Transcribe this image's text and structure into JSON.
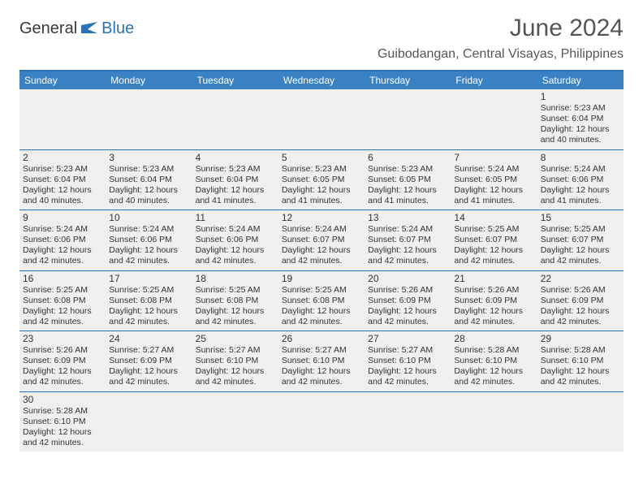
{
  "brand": {
    "part1": "General",
    "part2": "Blue"
  },
  "title": "June 2024",
  "location": "Guibodangan, Central Visayas, Philippines",
  "colors": {
    "header_bar": "#3b82c4",
    "accent": "#2a72b5",
    "cell_bg": "#efefef",
    "text": "#333333"
  },
  "weekdays": [
    "Sunday",
    "Monday",
    "Tuesday",
    "Wednesday",
    "Thursday",
    "Friday",
    "Saturday"
  ],
  "labels": {
    "sunrise_prefix": "Sunrise: ",
    "sunset_prefix": "Sunset: ",
    "daylight_prefix": "Daylight: "
  },
  "weeks": [
    [
      null,
      null,
      null,
      null,
      null,
      null,
      {
        "n": 1,
        "sunrise": "5:23 AM",
        "sunset": "6:04 PM",
        "daylight": "12 hours and 40 minutes."
      }
    ],
    [
      {
        "n": 2,
        "sunrise": "5:23 AM",
        "sunset": "6:04 PM",
        "daylight": "12 hours and 40 minutes."
      },
      {
        "n": 3,
        "sunrise": "5:23 AM",
        "sunset": "6:04 PM",
        "daylight": "12 hours and 40 minutes."
      },
      {
        "n": 4,
        "sunrise": "5:23 AM",
        "sunset": "6:04 PM",
        "daylight": "12 hours and 41 minutes."
      },
      {
        "n": 5,
        "sunrise": "5:23 AM",
        "sunset": "6:05 PM",
        "daylight": "12 hours and 41 minutes."
      },
      {
        "n": 6,
        "sunrise": "5:23 AM",
        "sunset": "6:05 PM",
        "daylight": "12 hours and 41 minutes."
      },
      {
        "n": 7,
        "sunrise": "5:24 AM",
        "sunset": "6:05 PM",
        "daylight": "12 hours and 41 minutes."
      },
      {
        "n": 8,
        "sunrise": "5:24 AM",
        "sunset": "6:06 PM",
        "daylight": "12 hours and 41 minutes."
      }
    ],
    [
      {
        "n": 9,
        "sunrise": "5:24 AM",
        "sunset": "6:06 PM",
        "daylight": "12 hours and 42 minutes."
      },
      {
        "n": 10,
        "sunrise": "5:24 AM",
        "sunset": "6:06 PM",
        "daylight": "12 hours and 42 minutes."
      },
      {
        "n": 11,
        "sunrise": "5:24 AM",
        "sunset": "6:06 PM",
        "daylight": "12 hours and 42 minutes."
      },
      {
        "n": 12,
        "sunrise": "5:24 AM",
        "sunset": "6:07 PM",
        "daylight": "12 hours and 42 minutes."
      },
      {
        "n": 13,
        "sunrise": "5:24 AM",
        "sunset": "6:07 PM",
        "daylight": "12 hours and 42 minutes."
      },
      {
        "n": 14,
        "sunrise": "5:25 AM",
        "sunset": "6:07 PM",
        "daylight": "12 hours and 42 minutes."
      },
      {
        "n": 15,
        "sunrise": "5:25 AM",
        "sunset": "6:07 PM",
        "daylight": "12 hours and 42 minutes."
      }
    ],
    [
      {
        "n": 16,
        "sunrise": "5:25 AM",
        "sunset": "6:08 PM",
        "daylight": "12 hours and 42 minutes."
      },
      {
        "n": 17,
        "sunrise": "5:25 AM",
        "sunset": "6:08 PM",
        "daylight": "12 hours and 42 minutes."
      },
      {
        "n": 18,
        "sunrise": "5:25 AM",
        "sunset": "6:08 PM",
        "daylight": "12 hours and 42 minutes."
      },
      {
        "n": 19,
        "sunrise": "5:25 AM",
        "sunset": "6:08 PM",
        "daylight": "12 hours and 42 minutes."
      },
      {
        "n": 20,
        "sunrise": "5:26 AM",
        "sunset": "6:09 PM",
        "daylight": "12 hours and 42 minutes."
      },
      {
        "n": 21,
        "sunrise": "5:26 AM",
        "sunset": "6:09 PM",
        "daylight": "12 hours and 42 minutes."
      },
      {
        "n": 22,
        "sunrise": "5:26 AM",
        "sunset": "6:09 PM",
        "daylight": "12 hours and 42 minutes."
      }
    ],
    [
      {
        "n": 23,
        "sunrise": "5:26 AM",
        "sunset": "6:09 PM",
        "daylight": "12 hours and 42 minutes."
      },
      {
        "n": 24,
        "sunrise": "5:27 AM",
        "sunset": "6:09 PM",
        "daylight": "12 hours and 42 minutes."
      },
      {
        "n": 25,
        "sunrise": "5:27 AM",
        "sunset": "6:10 PM",
        "daylight": "12 hours and 42 minutes."
      },
      {
        "n": 26,
        "sunrise": "5:27 AM",
        "sunset": "6:10 PM",
        "daylight": "12 hours and 42 minutes."
      },
      {
        "n": 27,
        "sunrise": "5:27 AM",
        "sunset": "6:10 PM",
        "daylight": "12 hours and 42 minutes."
      },
      {
        "n": 28,
        "sunrise": "5:28 AM",
        "sunset": "6:10 PM",
        "daylight": "12 hours and 42 minutes."
      },
      {
        "n": 29,
        "sunrise": "5:28 AM",
        "sunset": "6:10 PM",
        "daylight": "12 hours and 42 minutes."
      }
    ],
    [
      {
        "n": 30,
        "sunrise": "5:28 AM",
        "sunset": "6:10 PM",
        "daylight": "12 hours and 42 minutes."
      },
      null,
      null,
      null,
      null,
      null,
      null
    ]
  ]
}
